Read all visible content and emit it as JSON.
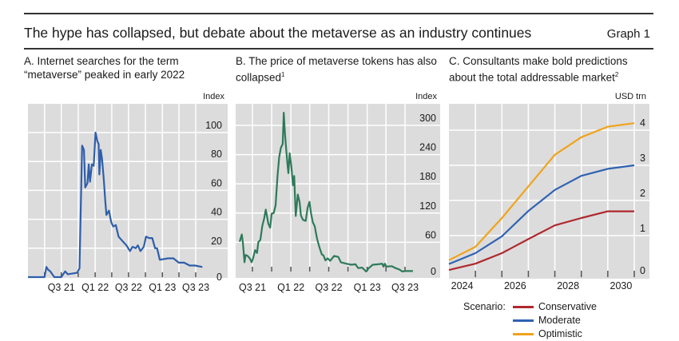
{
  "header": {
    "title": "The hype has collapsed, but debate about the metaverse as an industry continues",
    "graph_number": "Graph 1"
  },
  "colors": {
    "plot_bg": "#dcdcdc",
    "grid": "#ffffff",
    "search_line": "#2f5eaa",
    "token_line": "#2e7a5a",
    "conservative": "#b0282d",
    "moderate": "#2f62b3",
    "optimistic": "#f0a31c"
  },
  "chart_data": [
    {
      "type": "line",
      "title": "A. Internet searches for the term “metaverse” peaked in early 2022",
      "unit": "Index",
      "ylim": [
        0,
        110
      ],
      "yticks": [
        0,
        20,
        40,
        60,
        80,
        100
      ],
      "xticks": [
        "2021-04-01",
        "2021-07-01",
        "2021-10-01",
        "2022-01-01",
        "2022-04-01",
        "2022-07-01",
        "2022-10-01",
        "2023-01-01",
        "2023-04-01",
        "2023-07-01"
      ],
      "xtick_labels": [
        {
          "date": "2021-07-01",
          "label": "Q3 21"
        },
        {
          "date": "2022-01-01",
          "label": "Q1 22"
        },
        {
          "date": "2022-07-01",
          "label": "Q3 22"
        },
        {
          "date": "2023-01-01",
          "label": "Q1 23"
        },
        {
          "date": "2023-07-01",
          "label": "Q3 23"
        }
      ],
      "grid": true,
      "series": [
        {
          "color_key": "search_line",
          "points": [
            [
              "2021-01-01",
              0
            ],
            [
              "2021-04-01",
              0
            ],
            [
              "2021-04-11",
              7
            ],
            [
              "2021-04-21",
              5
            ],
            [
              "2021-05-02",
              4
            ],
            [
              "2021-05-24",
              0
            ],
            [
              "2021-07-01",
              0
            ],
            [
              "2021-07-22",
              4
            ],
            [
              "2021-08-05",
              2
            ],
            [
              "2021-09-25",
              3
            ],
            [
              "2021-10-08",
              6
            ],
            [
              "2021-10-22",
              91
            ],
            [
              "2021-11-01",
              88
            ],
            [
              "2021-11-08",
              62
            ],
            [
              "2021-11-20",
              65
            ],
            [
              "2021-11-27",
              78
            ],
            [
              "2021-12-04",
              66
            ],
            [
              "2021-12-14",
              78
            ],
            [
              "2021-12-24",
              77
            ],
            [
              "2022-01-03",
              100
            ],
            [
              "2022-01-13",
              94
            ],
            [
              "2022-01-20",
              92
            ],
            [
              "2022-01-24",
              71
            ],
            [
              "2022-01-31",
              88
            ],
            [
              "2022-02-07",
              82
            ],
            [
              "2022-02-17",
              67
            ],
            [
              "2022-02-24",
              54
            ],
            [
              "2022-03-03",
              43
            ],
            [
              "2022-03-17",
              46
            ],
            [
              "2022-03-29",
              38
            ],
            [
              "2022-04-09",
              35
            ],
            [
              "2022-04-23",
              36
            ],
            [
              "2022-05-08",
              28
            ],
            [
              "2022-05-29",
              25
            ],
            [
              "2022-06-20",
              22
            ],
            [
              "2022-07-09",
              18
            ],
            [
              "2022-07-23",
              21
            ],
            [
              "2022-08-09",
              20
            ],
            [
              "2022-08-21",
              22
            ],
            [
              "2022-09-04",
              18
            ],
            [
              "2022-09-22",
              21
            ],
            [
              "2022-10-04",
              28
            ],
            [
              "2022-10-21",
              27
            ],
            [
              "2022-11-07",
              27
            ],
            [
              "2022-11-22",
              20
            ],
            [
              "2022-12-03",
              20
            ],
            [
              "2022-12-18",
              12
            ],
            [
              "2023-02-01",
              13
            ],
            [
              "2023-03-02",
              13
            ],
            [
              "2023-03-31",
              10
            ],
            [
              "2023-04-29",
              10
            ],
            [
              "2023-05-29",
              8
            ],
            [
              "2023-06-27",
              8
            ],
            [
              "2023-08-06",
              7
            ]
          ]
        }
      ]
    },
    {
      "type": "line",
      "title": "B. The price of metaverse tokens has also collapsed",
      "title_footnote": "1",
      "unit": "Index",
      "ylim": [
        0,
        330
      ],
      "yticks": [
        0,
        60,
        120,
        180,
        240,
        300
      ],
      "xticks": [
        "2021-07-01",
        "2021-10-01",
        "2022-01-01",
        "2022-04-01",
        "2022-07-01",
        "2022-10-01",
        "2023-01-01",
        "2023-04-01",
        "2023-07-01"
      ],
      "xtick_labels": [
        {
          "date": "2021-07-01",
          "label": "Q3 21"
        },
        {
          "date": "2022-01-01",
          "label": "Q1 22"
        },
        {
          "date": "2022-07-01",
          "label": "Q3 22"
        },
        {
          "date": "2023-01-01",
          "label": "Q1 23"
        },
        {
          "date": "2023-07-01",
          "label": "Q3 23"
        }
      ],
      "grid": true,
      "series": [
        {
          "color_key": "token_line",
          "points": [
            [
              "2021-05-01",
              61
            ],
            [
              "2021-05-11",
              76
            ],
            [
              "2021-05-16",
              60
            ],
            [
              "2021-05-24",
              19
            ],
            [
              "2021-05-29",
              34
            ],
            [
              "2021-06-08",
              32
            ],
            [
              "2021-06-18",
              27
            ],
            [
              "2021-06-27",
              19
            ],
            [
              "2021-07-04",
              27
            ],
            [
              "2021-07-14",
              44
            ],
            [
              "2021-07-23",
              38
            ],
            [
              "2021-07-29",
              60
            ],
            [
              "2021-08-08",
              65
            ],
            [
              "2021-08-17",
              93
            ],
            [
              "2021-08-26",
              109
            ],
            [
              "2021-09-03",
              127
            ],
            [
              "2021-09-08",
              115
            ],
            [
              "2021-09-15",
              98
            ],
            [
              "2021-09-24",
              90
            ],
            [
              "2021-10-01",
              119
            ],
            [
              "2021-10-11",
              120
            ],
            [
              "2021-10-20",
              136
            ],
            [
              "2021-10-29",
              196
            ],
            [
              "2021-11-06",
              235
            ],
            [
              "2021-11-14",
              254
            ],
            [
              "2021-11-23",
              262
            ],
            [
              "2021-11-28",
              326
            ],
            [
              "2021-12-04",
              281
            ],
            [
              "2021-12-10",
              248
            ],
            [
              "2021-12-16",
              218
            ],
            [
              "2021-12-20",
              202
            ],
            [
              "2021-12-26",
              243
            ],
            [
              "2022-01-04",
              213
            ],
            [
              "2022-01-11",
              177
            ],
            [
              "2022-01-17",
              196
            ],
            [
              "2022-01-24",
              114
            ],
            [
              "2022-02-03",
              158
            ],
            [
              "2022-02-12",
              142
            ],
            [
              "2022-02-18",
              115
            ],
            [
              "2022-02-28",
              106
            ],
            [
              "2022-03-13",
              104
            ],
            [
              "2022-03-22",
              131
            ],
            [
              "2022-03-31",
              143
            ],
            [
              "2022-04-07",
              120
            ],
            [
              "2022-04-16",
              101
            ],
            [
              "2022-04-25",
              93
            ],
            [
              "2022-05-06",
              68
            ],
            [
              "2022-05-18",
              49
            ],
            [
              "2022-05-29",
              35
            ],
            [
              "2022-06-06",
              33
            ],
            [
              "2022-06-15",
              23
            ],
            [
              "2022-06-26",
              27
            ],
            [
              "2022-07-08",
              22
            ],
            [
              "2022-07-27",
              32
            ],
            [
              "2022-08-16",
              30
            ],
            [
              "2022-08-28",
              19
            ],
            [
              "2022-09-23",
              16
            ],
            [
              "2022-10-18",
              14
            ],
            [
              "2022-11-06",
              15
            ],
            [
              "2022-11-19",
              7
            ],
            [
              "2022-12-08",
              8
            ],
            [
              "2022-12-27",
              0
            ],
            [
              "2023-01-09",
              7
            ],
            [
              "2023-01-28",
              14
            ],
            [
              "2023-02-23",
              15
            ],
            [
              "2023-03-14",
              16
            ],
            [
              "2023-03-20",
              10
            ],
            [
              "2023-03-27",
              16
            ],
            [
              "2023-04-02",
              10
            ],
            [
              "2023-04-28",
              11
            ],
            [
              "2023-05-17",
              7
            ],
            [
              "2023-06-05",
              4
            ],
            [
              "2023-06-18",
              0
            ],
            [
              "2023-06-30",
              1
            ],
            [
              "2023-08-08",
              1
            ]
          ]
        }
      ]
    },
    {
      "type": "line",
      "title": "C. Consultants make bold predictions about the total addressable market",
      "title_footnote": "2",
      "unit": "USD trn",
      "ylim": [
        0,
        4.4
      ],
      "yticks": [
        0,
        1,
        2,
        3,
        4
      ],
      "xlim": [
        2024,
        2031
      ],
      "xtick_labels": [
        "2024",
        "2026",
        "2028",
        "2030"
      ],
      "grid": true,
      "legend": {
        "title": "Scenario:",
        "placement": "bottom"
      },
      "x": [
        2024,
        2025,
        2026,
        2027,
        2028,
        2029,
        2030,
        2031
      ],
      "series": [
        {
          "name": "Conservative",
          "color_key": "conservative",
          "values": [
            0.02,
            0.2,
            0.5,
            0.9,
            1.29,
            1.5,
            1.69,
            1.69
          ]
        },
        {
          "name": "Moderate",
          "color_key": "moderate",
          "values": [
            0.19,
            0.5,
            0.98,
            1.7,
            2.3,
            2.7,
            2.9,
            3.0
          ]
        },
        {
          "name": "Optimistic",
          "color_key": "optimistic",
          "values": [
            0.3,
            0.68,
            1.5,
            2.4,
            3.3,
            3.8,
            4.1,
            4.2
          ]
        }
      ]
    }
  ]
}
